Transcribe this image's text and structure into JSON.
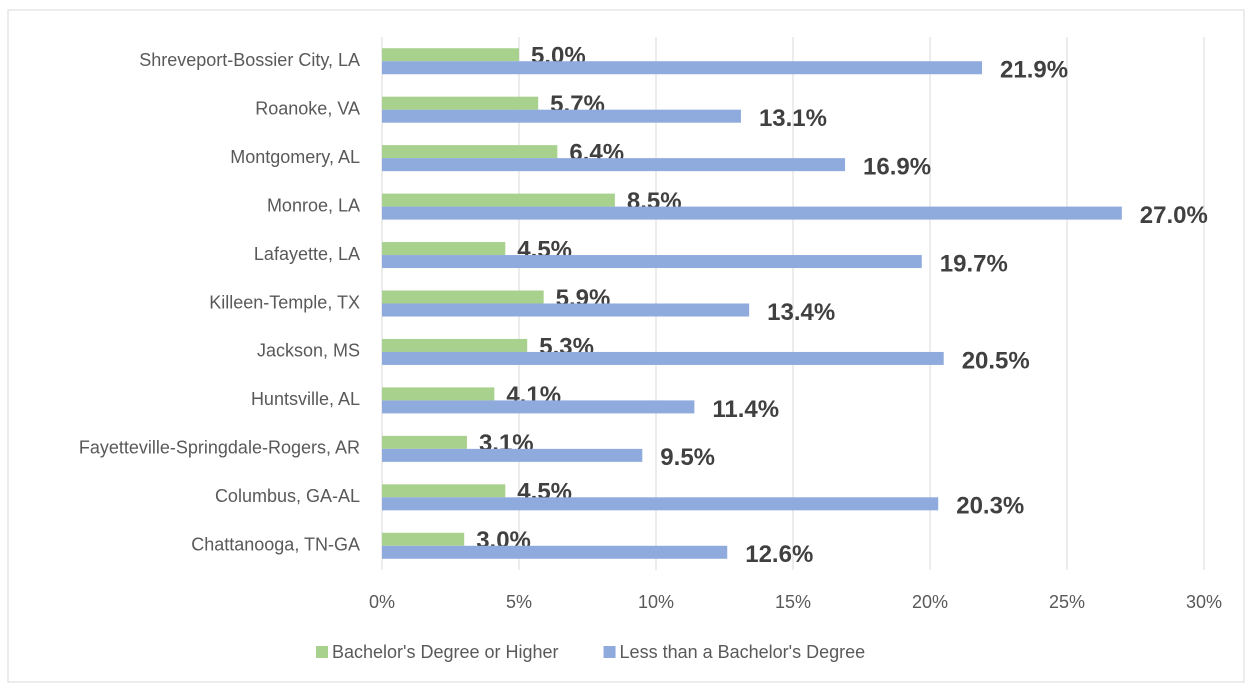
{
  "chart_data": {
    "type": "hbar",
    "categories": [
      "Shreveport-Bossier City, LA",
      "Roanoke, VA",
      "Montgomery, AL",
      "Monroe, LA",
      "Lafayette, LA",
      "Killeen-Temple, TX",
      "Jackson, MS",
      "Huntsville, AL",
      "Fayetteville-Springdale-Rogers, AR",
      "Columbus, GA-AL",
      "Chattanooga, TN-GA"
    ],
    "series": [
      {
        "name": "Bachelor's Degree or Higher",
        "color": "#a9d18e",
        "values": [
          5.0,
          5.7,
          6.4,
          8.5,
          4.5,
          5.9,
          5.3,
          4.1,
          3.1,
          4.5,
          3.0
        ],
        "value_labels": [
          "5.0%",
          "5.7%",
          "6.4%",
          "8.5%",
          "4.5%",
          "5.9%",
          "5.3%",
          "4.1%",
          "3.1%",
          "4.5%",
          "3.0%"
        ]
      },
      {
        "name": "Less than a Bachelor's Degree",
        "color": "#8faadc",
        "values": [
          21.9,
          13.1,
          16.9,
          27.0,
          19.7,
          13.4,
          20.5,
          11.4,
          9.5,
          20.3,
          12.6
        ],
        "value_labels": [
          "21.9%",
          "13.1%",
          "16.9%",
          "27.0%",
          "19.7%",
          "13.4%",
          "20.5%",
          "11.4%",
          "9.5%",
          "20.3%",
          "12.6%"
        ]
      }
    ],
    "xlim": [
      0,
      30
    ],
    "xticks": [
      {
        "value": 0,
        "label": "0%"
      },
      {
        "value": 5,
        "label": "5%"
      },
      {
        "value": 10,
        "label": "10%"
      },
      {
        "value": 15,
        "label": "15%"
      },
      {
        "value": 20,
        "label": "20%"
      },
      {
        "value": 25,
        "label": "25%"
      },
      {
        "value": 30,
        "label": "30%"
      }
    ],
    "grid": true,
    "legend": "bottom"
  }
}
